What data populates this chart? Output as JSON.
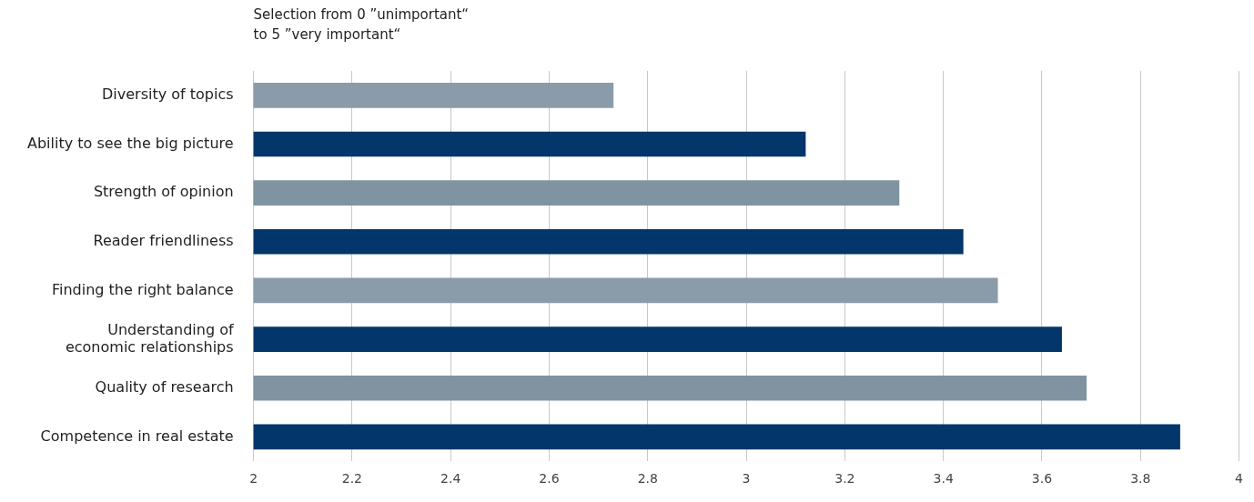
{
  "chart_data": {
    "type": "bar",
    "orientation": "horizontal",
    "title": "Selection from 0 ”unimportant“\nto 5 ”very important“",
    "categories": [
      "Diversity of topics",
      "Ability to see the big picture",
      "Strength of opinion",
      "Reader friendliness",
      "Finding the right balance",
      "Understanding of economic relationships",
      "Quality of research",
      "Competence in real estate"
    ],
    "values": [
      2.73,
      3.12,
      3.31,
      3.44,
      3.51,
      3.64,
      3.69,
      3.88
    ],
    "colors": [
      "#8a9ca9",
      "#03366a",
      "#7f93a0",
      "#03366a",
      "#8a9ca9",
      "#03366a",
      "#7f93a0",
      "#03366a"
    ],
    "xlim": [
      2,
      4
    ],
    "xticks": [
      2,
      2.2,
      2.4,
      2.6,
      2.8,
      3,
      3.2,
      3.4,
      3.6,
      3.8,
      4
    ],
    "grid": "x",
    "legend": false
  }
}
